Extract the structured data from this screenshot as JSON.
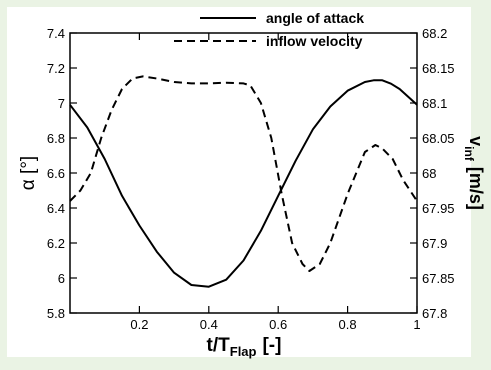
{
  "chart_data": {
    "type": "line",
    "title": "",
    "xlabel": "t/T",
    "xlabel_sub": "Flap",
    "xlabel_unit": "[-]",
    "ylabel": "α [°]",
    "y2label": "v",
    "y2label_sub": "inf",
    "y2label_unit": "[m/s]",
    "xlim": [
      0,
      1
    ],
    "ylim": [
      5.8,
      7.4
    ],
    "y2lim": [
      67.8,
      68.2
    ],
    "x_ticks": [
      "0.2",
      "0.4",
      "0.6",
      "0.8",
      "1"
    ],
    "y_ticks": [
      "5.8",
      "6",
      "6.2",
      "6.4",
      "6.6",
      "6.8",
      "7",
      "7.2",
      "7.4"
    ],
    "y2_ticks": [
      "67.8",
      "67.85",
      "67.9",
      "67.95",
      "68",
      "68.05",
      "68.1",
      "68.15",
      "68.2"
    ],
    "grid": false,
    "legend_position": "top",
    "legend": [
      {
        "label": "angle of attack",
        "style": "solid"
      },
      {
        "label": "inflow velocity",
        "style": "dashed"
      }
    ],
    "series": [
      {
        "name": "angle of attack",
        "axis": "left",
        "style": "solid",
        "color": "#000000",
        "x": [
          0,
          0.05,
          0.1,
          0.15,
          0.2,
          0.25,
          0.3,
          0.35,
          0.4,
          0.45,
          0.5,
          0.55,
          0.6,
          0.65,
          0.7,
          0.75,
          0.8,
          0.85,
          0.875,
          0.9,
          0.925,
          0.95,
          1
        ],
        "y": [
          6.99,
          6.86,
          6.68,
          6.47,
          6.3,
          6.15,
          6.03,
          5.96,
          5.95,
          5.99,
          6.1,
          6.27,
          6.47,
          6.67,
          6.85,
          6.98,
          7.07,
          7.12,
          7.13,
          7.13,
          7.11,
          7.08,
          6.99
        ]
      },
      {
        "name": "inflow velocity",
        "axis": "right",
        "style": "dashed",
        "color": "#000000",
        "x": [
          0,
          0.03,
          0.06,
          0.09,
          0.12,
          0.15,
          0.18,
          0.21,
          0.25,
          0.3,
          0.35,
          0.4,
          0.45,
          0.5,
          0.52,
          0.55,
          0.58,
          0.61,
          0.64,
          0.67,
          0.69,
          0.72,
          0.75,
          0.8,
          0.85,
          0.88,
          0.9,
          0.93,
          0.96,
          1
        ],
        "y": [
          67.96,
          67.975,
          68.0,
          68.05,
          68.09,
          68.12,
          68.135,
          68.138,
          68.135,
          68.13,
          68.128,
          68.128,
          68.129,
          68.128,
          68.125,
          68.1,
          68.05,
          67.97,
          67.9,
          67.87,
          67.86,
          67.87,
          67.9,
          67.97,
          68.03,
          68.04,
          68.035,
          68.02,
          67.99,
          67.96
        ]
      }
    ]
  }
}
